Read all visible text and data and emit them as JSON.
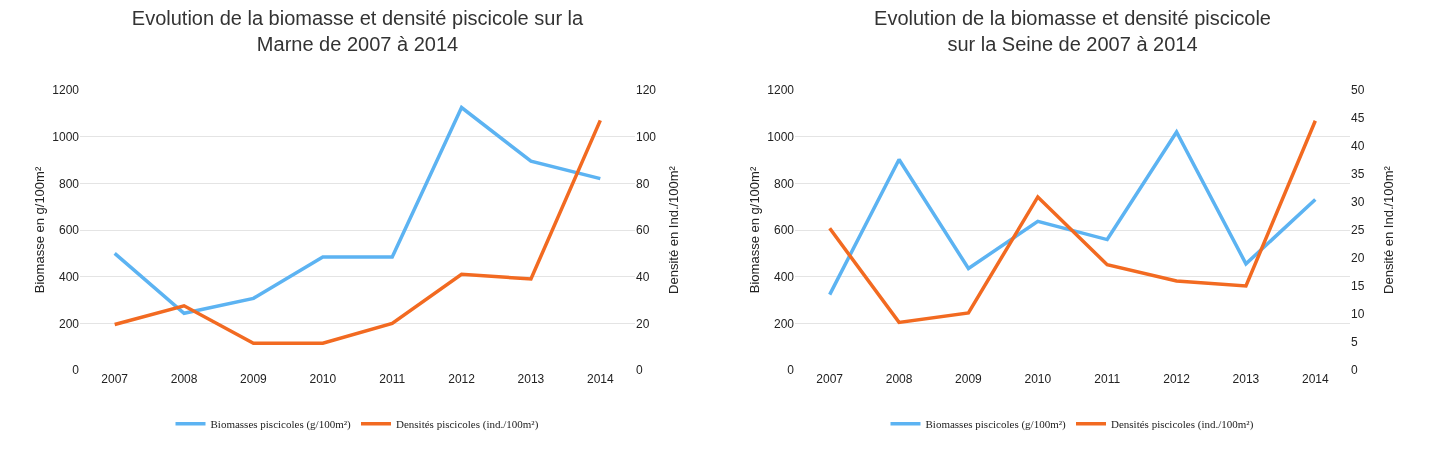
{
  "chart_data": [
    {
      "type": "line",
      "title": "Evolution de la biomasse et densité piscicole sur la\nMarne de 2007 à 2014",
      "ylabel": "Biomasse en g/100m²",
      "y2label": "Densité en Ind./100m²",
      "categories": [
        "2007",
        "2008",
        "2009",
        "2010",
        "2011",
        "2012",
        "2013",
        "2014"
      ],
      "series": [
        {
          "name": "Biomasses piscicoles (g/100m²)",
          "color": "#5cb3f2",
          "values": [
            500,
            243,
            307,
            484,
            484,
            1125,
            895,
            820
          ]
        },
        {
          "name": "Densités piscicoles (ind./100m²)",
          "color": "#f26a21",
          "axis": "y2",
          "values": [
            19.5,
            27.5,
            11.5,
            11.5,
            20,
            41,
            39,
            107
          ]
        }
      ],
      "ylim": [
        0,
        1200
      ],
      "yticks": [
        0,
        200,
        400,
        600,
        800,
        1000,
        1200
      ],
      "y2lim": [
        0,
        120
      ],
      "y2ticks": [
        0,
        20,
        40,
        60,
        80,
        100,
        120
      ],
      "grid": "y",
      "legend": "bottom",
      "marker": "none",
      "line_style": "solid"
    },
    {
      "type": "line",
      "title": "Evolution de la biomasse et densité piscicole\nsur la Seine de 2007 à 2014",
      "ylabel": "Biomasse en g/100m²",
      "y2label": "Densité en Ind./100m²",
      "categories": [
        "2007",
        "2008",
        "2009",
        "2010",
        "2011",
        "2012",
        "2013",
        "2014"
      ],
      "series": [
        {
          "name": "Biomasses piscicoles (g/100m²)",
          "color": "#5cb3f2",
          "values": [
            323,
            902,
            435,
            637,
            559,
            1020,
            455,
            731
          ]
        },
        {
          "name": "Densités piscicoles (ind./100m²)",
          "color": "#f26a21",
          "axis": "y2",
          "values": [
            25.3,
            8.5,
            10.2,
            30.9,
            18.8,
            15.9,
            15,
            44.5
          ]
        }
      ],
      "ylim": [
        0,
        1200
      ],
      "yticks": [
        0,
        200,
        400,
        600,
        800,
        1000,
        1200
      ],
      "y2lim": [
        0,
        50
      ],
      "y2ticks": [
        0,
        5,
        10,
        15,
        20,
        25,
        30,
        35,
        40,
        45,
        50
      ],
      "grid": "y",
      "legend": "bottom",
      "marker": "none",
      "line_style": "solid"
    }
  ]
}
